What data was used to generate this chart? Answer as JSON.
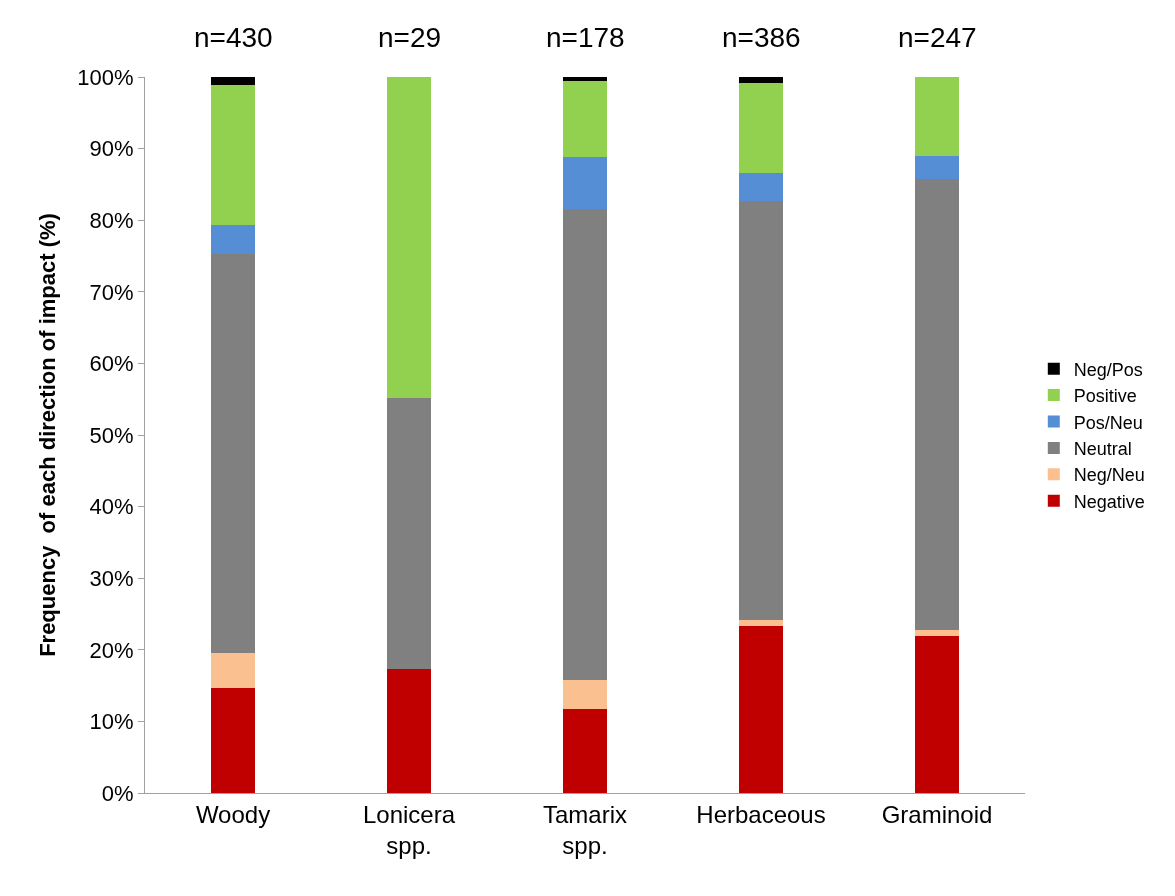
{
  "chart_data": {
    "type": "bar",
    "stacked": true,
    "categories": [
      "Woody",
      "Lonicera spp.",
      "Tamarix spp.",
      "Herbaceous",
      "Graminoid"
    ],
    "ylabel": "Frequency  of each direction of impact (%)",
    "ylim": [
      0,
      100
    ],
    "yticks": [
      {
        "value": 0,
        "label": "0%"
      },
      {
        "value": 10,
        "label": "10%"
      },
      {
        "value": 20,
        "label": "20%"
      },
      {
        "value": 30,
        "label": "30%"
      },
      {
        "value": 40,
        "label": "40%"
      },
      {
        "value": 50,
        "label": "50%"
      },
      {
        "value": 60,
        "label": "60%"
      },
      {
        "value": 70,
        "label": "70%"
      },
      {
        "value": 80,
        "label": "80%"
      },
      {
        "value": 90,
        "label": "90%"
      },
      {
        "value": 100,
        "label": "100%"
      }
    ],
    "series": [
      {
        "name": "Negative",
        "color": "#c00000",
        "values": [
          14.7,
          17.3,
          11.8,
          23.3,
          21.9
        ]
      },
      {
        "name": "Neg/Neu",
        "color": "#fac090",
        "values": [
          4.9,
          0,
          4.0,
          0.8,
          0.8
        ]
      },
      {
        "name": "Neutral",
        "color": "#808080",
        "values": [
          55.7,
          37.9,
          65.7,
          58.6,
          63.1
        ]
      },
      {
        "name": "Pos/Neu",
        "color": "#558ed5",
        "values": [
          4.0,
          0,
          7.3,
          3.9,
          3.2
        ]
      },
      {
        "name": "Positive",
        "color": "#92d050",
        "values": [
          19.6,
          44.8,
          10.7,
          12.6,
          11.0
        ]
      },
      {
        "name": "Neg/Pos",
        "color": "#000000",
        "values": [
          1.1,
          0,
          0.5,
          0.8,
          0
        ]
      }
    ],
    "annotations": [
      "n=430",
      "n=29",
      "n=178",
      "n=386",
      "n=247"
    ],
    "legend": "right"
  }
}
